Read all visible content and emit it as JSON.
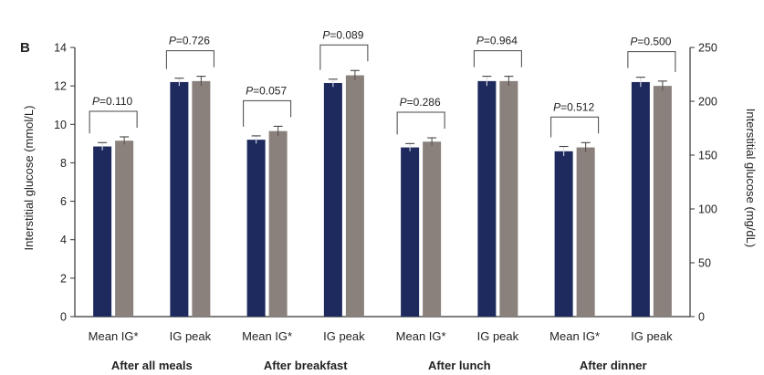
{
  "chart_data": {
    "type": "bar",
    "panel_label": "B",
    "ylabel_left": "Interstitial glucose (mmol/L)",
    "ylabel_right": "Interstitial glucose (mg/dL)",
    "ylim_left": [
      0,
      14
    ],
    "yticks_left": [
      0,
      2,
      4,
      6,
      8,
      10,
      12,
      14
    ],
    "ylim_right": [
      0,
      250
    ],
    "yticks_right": [
      0,
      50,
      100,
      150,
      200,
      250
    ],
    "colors": [
      "#1e2a5e",
      "#8a817c"
    ],
    "groups": [
      {
        "label": "After all meals",
        "categories": [
          "Mean IG*",
          "IG peak"
        ],
        "bars": [
          [
            8.85,
            9.15
          ],
          [
            12.2,
            12.25
          ]
        ],
        "errors": [
          [
            0.2,
            0.2
          ],
          [
            0.2,
            0.25
          ]
        ],
        "p_values": [
          "=0.110",
          "=0.726"
        ]
      },
      {
        "label": "After breakfast",
        "categories": [
          "Mean IG*",
          "IG peak"
        ],
        "bars": [
          [
            9.2,
            9.65
          ],
          [
            12.15,
            12.55
          ]
        ],
        "errors": [
          [
            0.2,
            0.25
          ],
          [
            0.2,
            0.25
          ]
        ],
        "p_values": [
          "=0.057",
          "=0.089"
        ]
      },
      {
        "label": "After lunch",
        "categories": [
          "Mean IG*",
          "IG peak"
        ],
        "bars": [
          [
            8.8,
            9.1
          ],
          [
            12.25,
            12.25
          ]
        ],
        "errors": [
          [
            0.2,
            0.2
          ],
          [
            0.25,
            0.25
          ]
        ],
        "p_values": [
          "=0.286",
          "=0.964"
        ]
      },
      {
        "label": "After dinner",
        "categories": [
          "Mean IG*",
          "IG peak"
        ],
        "bars": [
          [
            8.6,
            8.8
          ],
          [
            12.2,
            12.0
          ]
        ],
        "errors": [
          [
            0.25,
            0.25
          ],
          [
            0.25,
            0.25
          ]
        ],
        "p_values": [
          "=0.512",
          "=0.500"
        ]
      }
    ],
    "p_prefix": "P"
  }
}
